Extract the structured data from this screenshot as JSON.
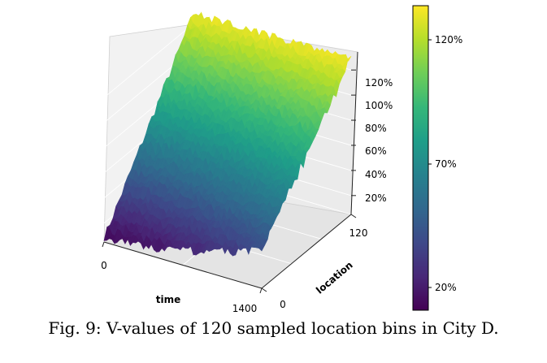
{
  "chart_data": {
    "type": "surface",
    "xlabel": "time",
    "ylabel": "location",
    "x_ticks": [
      "0",
      "1400"
    ],
    "y_ticks": [
      "0",
      "120"
    ],
    "z_ticks": [
      "20%",
      "40%",
      "60%",
      "80%",
      "100%",
      "120%"
    ],
    "xlim": [
      0,
      1400
    ],
    "ylim": [
      0,
      120
    ],
    "zlim_percent": [
      5,
      135
    ],
    "surface_profile_by_location": {
      "location": [
        0,
        20,
        40,
        60,
        80,
        100,
        120
      ],
      "v_percent_low_time": [
        8,
        28,
        48,
        68,
        88,
        108,
        128
      ],
      "v_percent_high_time": [
        35,
        50,
        66,
        82,
        98,
        114,
        130
      ]
    },
    "colorbar": {
      "colormap": "viridis",
      "ticks": [
        "20%",
        "70%",
        "120%"
      ],
      "colors": [
        "#440154",
        "#482878",
        "#3e4989",
        "#31688e",
        "#26828e",
        "#1f9e89",
        "#35b779",
        "#6ece58",
        "#b5de2b",
        "#fde725"
      ]
    }
  },
  "caption": "Fig. 9: V-values of 120 sampled location bins in City D."
}
